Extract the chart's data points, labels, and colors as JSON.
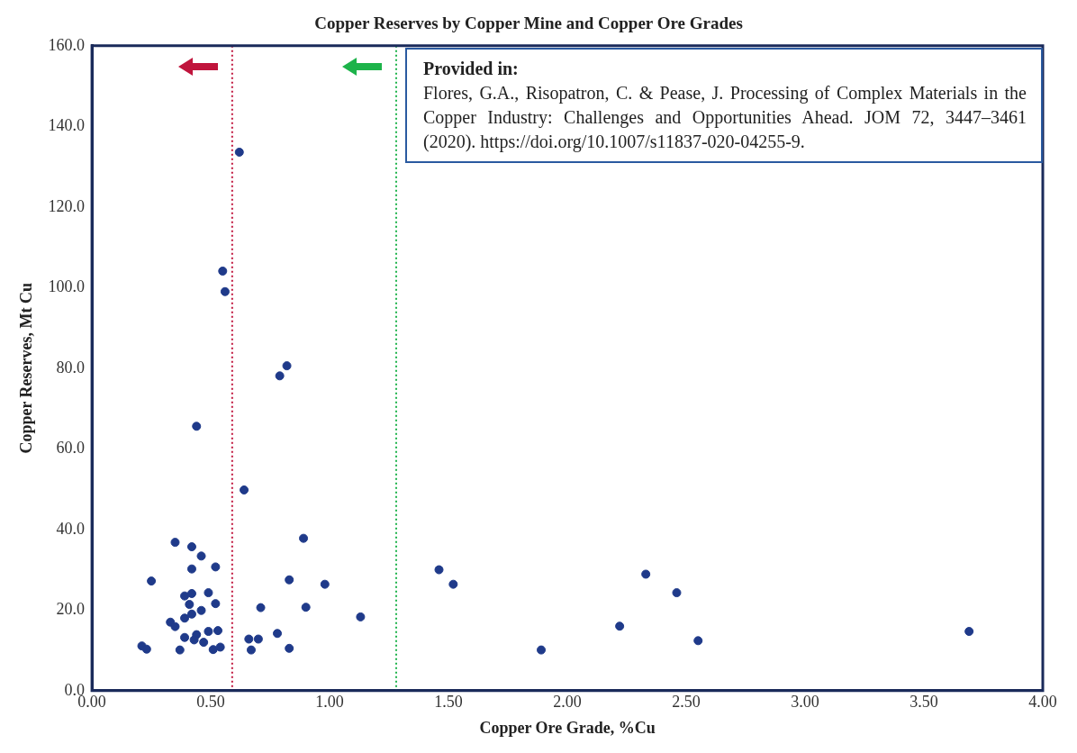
{
  "chart_data": {
    "type": "scatter",
    "title": "Copper Reserves by Copper Mine and Copper Ore Grades",
    "xlabel": "Copper Ore Grade, %Cu",
    "ylabel": "Copper Reserves, Mt Cu",
    "x": [
      0.35,
      0.42,
      0.46,
      0.42,
      0.52,
      0.25,
      0.39,
      0.42,
      0.41,
      0.49,
      0.52,
      0.46,
      0.42,
      0.39,
      0.33,
      0.35,
      0.39,
      0.44,
      0.43,
      0.47,
      0.49,
      0.53,
      0.21,
      0.23,
      0.37,
      0.51,
      0.54,
      0.89,
      0.83,
      0.98,
      0.71,
      0.9,
      1.13,
      0.78,
      0.66,
      0.7,
      0.67,
      0.83,
      0.55,
      0.56,
      0.82,
      0.79,
      0.44,
      0.64,
      0.62,
      1.46,
      1.52,
      1.89,
      2.22,
      2.33,
      2.46,
      2.55,
      3.69
    ],
    "values": [
      36.8,
      35.7,
      33.4,
      30.2,
      30.7,
      27.2,
      23.5,
      24.1,
      21.4,
      24.3,
      21.6,
      19.9,
      19.0,
      18.0,
      17.0,
      15.9,
      13.2,
      13.9,
      12.6,
      12.0,
      14.7,
      14.9,
      11.1,
      10.3,
      10.1,
      10.2,
      10.8,
      37.8,
      27.5,
      26.4,
      20.6,
      20.7,
      18.3,
      14.2,
      12.8,
      12.8,
      10.1,
      10.5,
      104.1,
      99.0,
      80.6,
      78.1,
      65.6,
      49.8,
      133.6,
      30.0,
      26.4,
      10.1,
      16.0,
      28.9,
      24.3,
      12.4,
      14.7
    ],
    "color": "#1f3a8a",
    "marker": "circle",
    "xlim": [
      0,
      4
    ],
    "xticks": [
      {
        "value": 0,
        "label": "0.00"
      },
      {
        "value": 0.5,
        "label": "0.50"
      },
      {
        "value": 1,
        "label": "1.00"
      },
      {
        "value": 1.5,
        "label": "1.50"
      },
      {
        "value": 2,
        "label": "2.00"
      },
      {
        "value": 2.5,
        "label": "2.50"
      },
      {
        "value": 3,
        "label": "3.00"
      },
      {
        "value": 3.5,
        "label": "3.50"
      },
      {
        "value": 4,
        "label": "4.00"
      }
    ],
    "ylim": [
      0,
      160
    ],
    "yticks": [
      {
        "value": 0,
        "label": "0.0"
      },
      {
        "value": 20,
        "label": "20.0"
      },
      {
        "value": 40,
        "label": "40.0"
      },
      {
        "value": 60,
        "label": "60.0"
      },
      {
        "value": 80,
        "label": "80.0"
      },
      {
        "value": 100,
        "label": "100.0"
      },
      {
        "value": 120,
        "label": "120.0"
      },
      {
        "value": 140,
        "label": "140.0"
      },
      {
        "value": 160,
        "label": "160.0"
      }
    ],
    "grid": false,
    "legend": false,
    "ref_lines": [
      {
        "axis": "x",
        "value": 0.59,
        "color": "#c0143c",
        "line_style": "dotted"
      },
      {
        "axis": "x",
        "value": 1.28,
        "color": "#1db34a",
        "line_style": "dotted"
      }
    ],
    "annotations": [
      "Provided in:",
      "Flores, G.A., Risopatron, C. & Pease, J. Processing of Complex Materials in the Copper Industry: Challenges and Opportunities Ahead. JOM 72, 3447–3461 (2020). https://doi.org/10.1007/s11837-020-04255-9."
    ]
  }
}
